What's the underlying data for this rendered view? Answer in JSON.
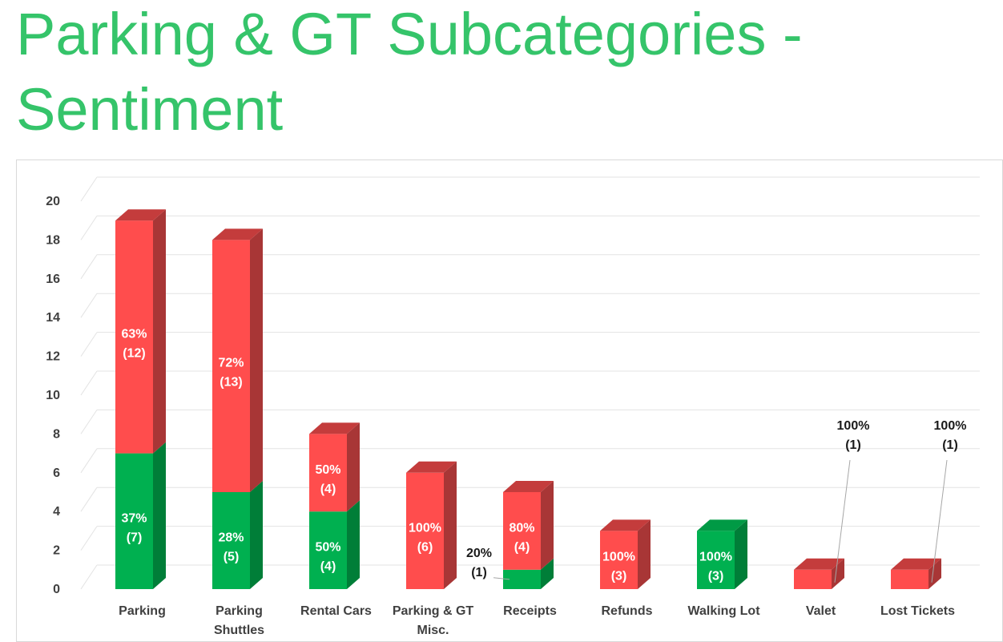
{
  "title": "Parking & GT Subcategories - Sentiment",
  "colors": {
    "positive": "#00b050",
    "positive_side": "#007e38",
    "positive_top": "#009a45",
    "negative": "#ff4d4d",
    "negative_side": "#a83636",
    "negative_top": "#c43c3c",
    "title": "#35c46a"
  },
  "chart_data": {
    "type": "bar",
    "stacked": true,
    "three_d": true,
    "categories": [
      "Parking",
      "Parking Shuttles",
      "Rental Cars",
      "Parking & GT Misc.",
      "Receipts",
      "Refunds",
      "Walking Lot",
      "Valet",
      "Lost Tickets"
    ],
    "series": [
      {
        "color": "#00b050",
        "values": [
          7,
          5,
          4,
          0,
          1,
          0,
          3,
          0,
          0
        ],
        "labels": [
          [
            "37%",
            "(7)"
          ],
          [
            "28%",
            "(5)"
          ],
          [
            "50%",
            "(4)"
          ],
          null,
          [
            "20%",
            "(1)"
          ],
          null,
          [
            "100%",
            "(3)"
          ],
          null,
          null
        ]
      },
      {
        "color": "#ff4d4d",
        "values": [
          12,
          13,
          4,
          6,
          4,
          3,
          0,
          1,
          1
        ],
        "labels": [
          [
            "63%",
            "(12)"
          ],
          [
            "72%",
            "(13)"
          ],
          [
            "50%",
            "(4)"
          ],
          [
            "100%",
            "(6)"
          ],
          [
            "80%",
            "(4)"
          ],
          [
            "100%",
            "(3)"
          ],
          null,
          [
            "100%",
            "(1)"
          ],
          [
            "100%",
            "(1)"
          ]
        ]
      }
    ],
    "y_ticks": [
      0,
      2,
      4,
      6,
      8,
      10,
      12,
      14,
      16,
      18,
      20
    ],
    "ylim": [
      0,
      20
    ],
    "grid": true,
    "legend": "none"
  }
}
